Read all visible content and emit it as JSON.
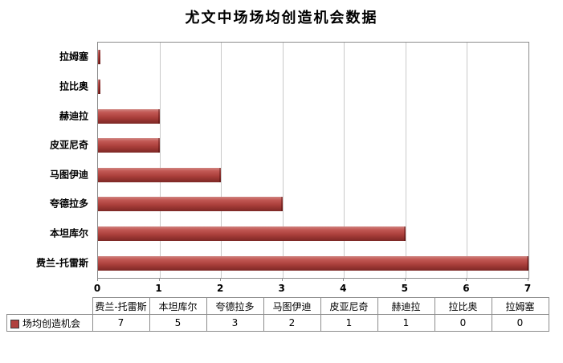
{
  "chart_data": {
    "type": "bar",
    "orientation": "horizontal",
    "title": "尤文中场场均创造机会数据",
    "categories_top_to_bottom": [
      "拉姆塞",
      "拉比奥",
      "赫迪拉",
      "皮亚尼奇",
      "马图伊迪",
      "夸德拉多",
      "本坦库尔",
      "费兰-托雷斯"
    ],
    "series": [
      {
        "name": "场均创造机会",
        "values": [
          0,
          0,
          1,
          1,
          2,
          3,
          5,
          7
        ]
      }
    ],
    "xlim": [
      0,
      7
    ],
    "x_ticks": [
      0,
      1,
      2,
      3,
      4,
      5,
      6,
      7
    ],
    "grid": true,
    "legend_position": "bottom-table",
    "bar_color": "#b0413e",
    "gridline_color": "#c9c9c9",
    "table": {
      "header": [
        "费兰-托雷斯",
        "本坦库尔",
        "夸德拉多",
        "马图伊迪",
        "皮亚尼奇",
        "赫迪拉",
        "拉比奥",
        "拉姆塞"
      ],
      "row_label": "场均创造机会",
      "values": [
        7,
        5,
        3,
        2,
        1,
        1,
        0,
        0
      ]
    }
  }
}
